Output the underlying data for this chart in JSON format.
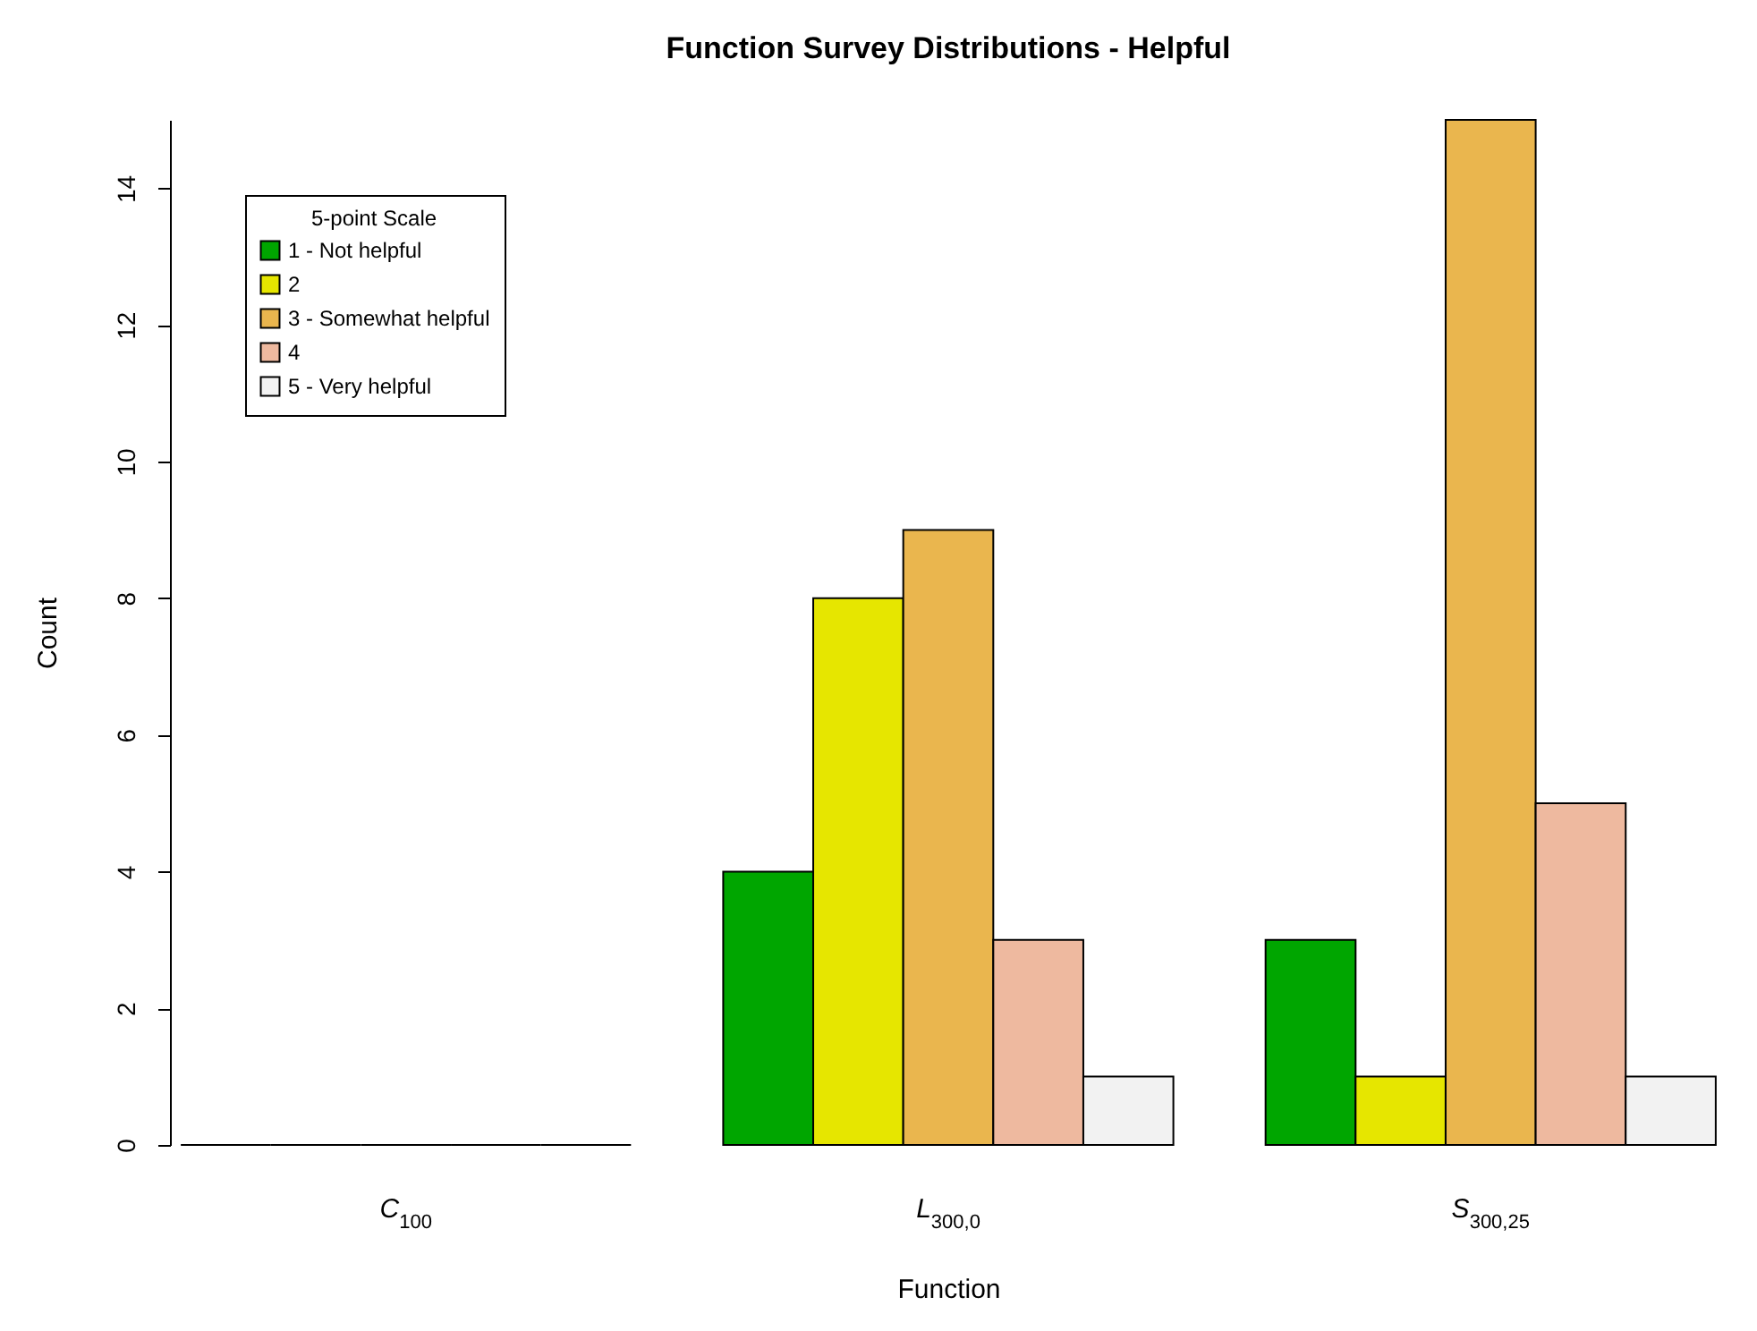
{
  "chart_data": {
    "type": "bar",
    "title": "Function Survey Distributions - Helpful",
    "xlabel": "Function",
    "ylabel": "Count",
    "legend_title": "5-point Scale",
    "legend": "top left",
    "grid": false,
    "categories": [
      "C$_{100}$",
      "L$_{300,0}$",
      "S$_{300,25}$"
    ],
    "ylim": [
      0,
      15
    ],
    "yticks": [
      0,
      2,
      4,
      6,
      8,
      10,
      12,
      14
    ],
    "series": [
      {
        "name": "1 - Not helpful",
        "color": "#00a600",
        "values": [
          0,
          4,
          3
        ]
      },
      {
        "name": "2",
        "color": "#e6e600",
        "values": [
          0,
          8,
          1
        ]
      },
      {
        "name": "3 - Somewhat helpful",
        "color": "#eab64e",
        "values": [
          0,
          9,
          15
        ]
      },
      {
        "name": "4",
        "color": "#eeb99f",
        "values": [
          0,
          3,
          5
        ]
      },
      {
        "name": "5 - Very helpful",
        "color": "#f2f2f2",
        "values": [
          0,
          1,
          1
        ]
      }
    ]
  }
}
